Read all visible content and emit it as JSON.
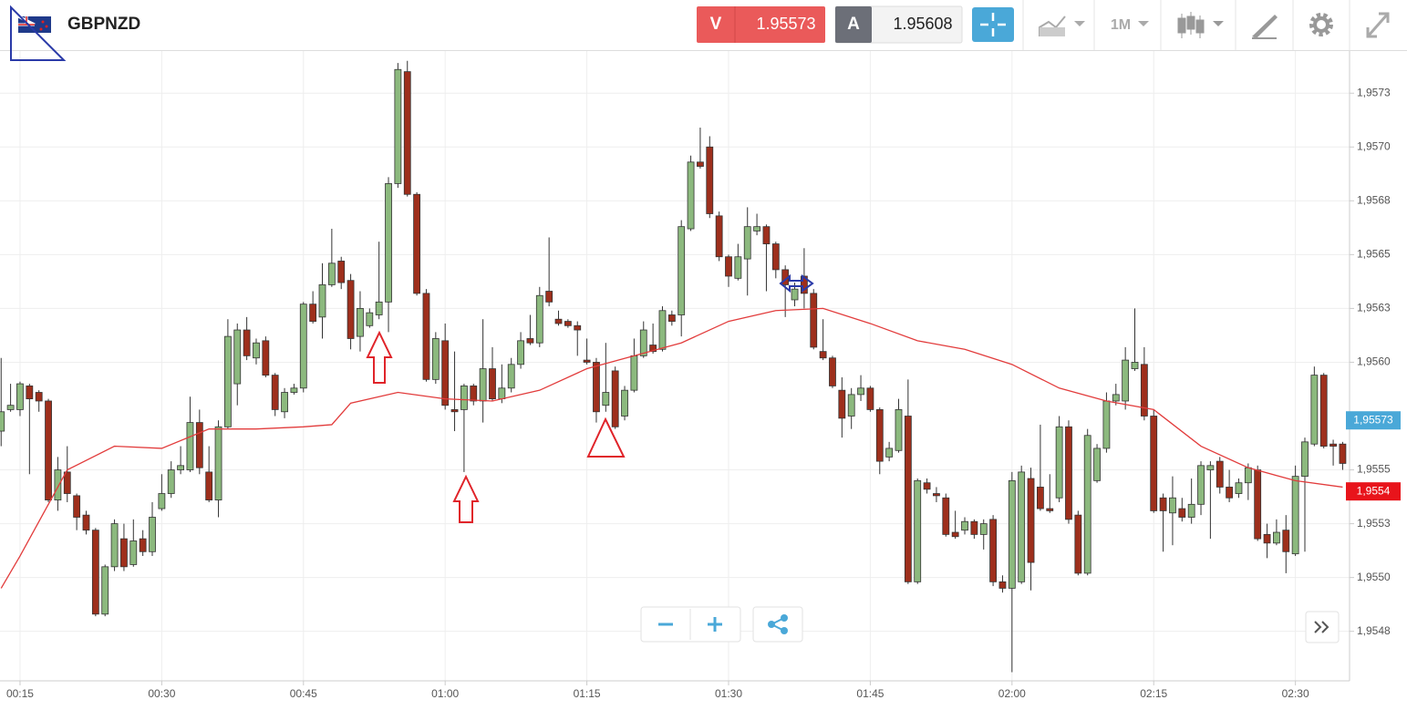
{
  "header": {
    "symbol": "GBPNZD",
    "sell_label": "V",
    "sell_price": "1.95573",
    "buy_label": "A",
    "buy_price": "1.95608",
    "timeframe": "1M"
  },
  "chart_data": {
    "type": "candlestick",
    "up_color": "#8cb97e",
    "down_color": "#9e2f1c",
    "xlim": [
      12.88,
      155.73
    ],
    "ylim": [
      1.95452,
      1.95745
    ],
    "xticks": [
      {
        "value": 15,
        "label": "00:15"
      },
      {
        "value": 30,
        "label": "00:30"
      },
      {
        "value": 45,
        "label": "00:45"
      },
      {
        "value": 60,
        "label": "01:00"
      },
      {
        "value": 75,
        "label": "01:15"
      },
      {
        "value": 90,
        "label": "01:30"
      },
      {
        "value": 105,
        "label": "01:45"
      },
      {
        "value": 120,
        "label": "02:00"
      },
      {
        "value": 135,
        "label": "02:15"
      },
      {
        "value": 150,
        "label": "02:30"
      }
    ],
    "yticks": [
      {
        "value": 1.95725,
        "label": "1,9573"
      },
      {
        "value": 1.957,
        "label": "1,9570"
      },
      {
        "value": 1.95675,
        "label": "1,9568"
      },
      {
        "value": 1.9565,
        "label": "1,9565"
      },
      {
        "value": 1.95625,
        "label": "1,9563"
      },
      {
        "value": 1.956,
        "label": "1,9560"
      },
      {
        "value": 1.9555,
        "label": "1,9555"
      },
      {
        "value": 1.95525,
        "label": "1,9553"
      },
      {
        "value": 1.955,
        "label": "1,9550"
      },
      {
        "value": 1.95475,
        "label": "1,9548"
      }
    ],
    "grid": true,
    "x": [
      13,
      14,
      15,
      16,
      17,
      18,
      19,
      20,
      21,
      22,
      23,
      24,
      25,
      26,
      27,
      28,
      29,
      30,
      31,
      32,
      33,
      34,
      35,
      36,
      37,
      38,
      39,
      40,
      41,
      42,
      43,
      44,
      45,
      46,
      47,
      48,
      49,
      50,
      51,
      52,
      53,
      54,
      55,
      56,
      57,
      58,
      59,
      60,
      61,
      62,
      63,
      64,
      65,
      66,
      67,
      68,
      69,
      70,
      71,
      72,
      73,
      74,
      75,
      76,
      77,
      78,
      79,
      80,
      81,
      82,
      83,
      84,
      85,
      86,
      87,
      88,
      89,
      90,
      91,
      92,
      93,
      94,
      95,
      96,
      97,
      98,
      99,
      100,
      101,
      102,
      103,
      104,
      105,
      106,
      107,
      108,
      109,
      110,
      111,
      112,
      113,
      114,
      115,
      116,
      117,
      118,
      119,
      120,
      121,
      122,
      123,
      124,
      125,
      126,
      127,
      128,
      129,
      130,
      131,
      132,
      133,
      134,
      135,
      136,
      137,
      138,
      139,
      140,
      141,
      142,
      143,
      144,
      145,
      146,
      147,
      148,
      149,
      150,
      151,
      152,
      153,
      154,
      155
    ],
    "open": [
      1.95568,
      1.95578,
      1.95578,
      1.95589,
      1.95586,
      1.95582,
      1.95536,
      1.95549,
      1.95538,
      1.95529,
      1.95522,
      1.95483,
      1.95505,
      1.95518,
      1.95506,
      1.95518,
      1.95512,
      1.95532,
      1.95539,
      1.9555,
      1.9555,
      1.95572,
      1.95549,
      1.95536,
      1.9557,
      1.9559,
      1.95615,
      1.95602,
      1.9561,
      1.95594,
      1.95577,
      1.95586,
      1.95588,
      1.95627,
      1.95621,
      1.95636,
      1.95647,
      1.95638,
      1.95612,
      1.95617,
      1.95622,
      1.95628,
      1.95683,
      1.95735,
      1.95678,
      1.95632,
      1.95592,
      1.9561,
      1.95578,
      1.95578,
      1.95589,
      1.95582,
      1.95597,
      1.95583,
      1.95588,
      1.95599,
      1.95611,
      1.95609,
      1.95633,
      1.9562,
      1.95619,
      1.95617,
      1.95601,
      1.956,
      1.9558,
      1.95596,
      1.95575,
      1.95587,
      1.95603,
      1.95608,
      1.95606,
      1.95622,
      1.95622,
      1.95662,
      1.95693,
      1.957,
      1.95668,
      1.95649,
      1.95639,
      1.95648,
      1.95661,
      1.95663,
      1.95655,
      1.95643,
      1.95629,
      1.9564,
      1.95632,
      1.95605,
      1.95602,
      1.95587,
      1.95575,
      1.95585,
      1.95588,
      1.95578,
      1.95556,
      1.95559,
      1.95575,
      1.95498,
      1.95544,
      1.95539,
      1.95537,
      1.95521,
      1.95522,
      1.95526,
      1.9552,
      1.95527,
      1.95498,
      1.95495,
      1.95498,
      1.95546,
      1.95542,
      1.95532,
      1.95537,
      1.9557,
      1.95529,
      1.95502,
      1.95545,
      1.9556,
      1.95582,
      1.95582,
      1.95597,
      1.95599,
      1.95575,
      1.95537,
      1.9553,
      1.95532,
      1.95528,
      1.95534,
      1.9555,
      1.95554,
      1.95542,
      1.95539,
      1.95544,
      1.9555,
      1.9552,
      1.95516,
      1.95522,
      1.95511,
      1.95547,
      1.95562,
      1.95594,
      1.95562,
      1.95562
    ],
    "high": [
      1.95602,
      1.9559,
      1.95591,
      1.9559,
      1.95587,
      1.95583,
      1.95556,
      1.95561,
      1.95539,
      1.95531,
      1.95523,
      1.95506,
      1.95527,
      1.95525,
      1.95527,
      1.95522,
      1.95535,
      1.95548,
      1.95554,
      1.95561,
      1.95584,
      1.95578,
      1.95561,
      1.95573,
      1.9562,
      1.95618,
      1.95621,
      1.95611,
      1.95612,
      1.95595,
      1.95588,
      1.9559,
      1.95628,
      1.95633,
      1.95646,
      1.95662,
      1.95649,
      1.95641,
      1.95633,
      1.95625,
      1.95656,
      1.95686,
      1.95739,
      1.9574,
      1.95679,
      1.95634,
      1.95614,
      1.95618,
      1.95605,
      1.9559,
      1.9559,
      1.9562,
      1.95607,
      1.95599,
      1.95602,
      1.95614,
      1.95622,
      1.95635,
      1.95658,
      1.95624,
      1.9562,
      1.95619,
      1.95611,
      1.95602,
      1.95609,
      1.95598,
      1.95589,
      1.95611,
      1.95619,
      1.95618,
      1.95626,
      1.95624,
      1.95666,
      1.95696,
      1.95709,
      1.95705,
      1.9567,
      1.9565,
      1.95655,
      1.95672,
      1.95669,
      1.95664,
      1.95656,
      1.95645,
      1.95637,
      1.95653,
      1.95634,
      1.9562,
      1.95603,
      1.95593,
      1.95588,
      1.95594,
      1.95589,
      1.95579,
      1.95563,
      1.95583,
      1.95592,
      1.95546,
      1.95546,
      1.95542,
      1.95539,
      1.95531,
      1.95528,
      1.95527,
      1.95527,
      1.95529,
      1.95501,
      1.95549,
      1.95552,
      1.95551,
      1.95571,
      1.95548,
      1.95575,
      1.95573,
      1.95531,
      1.95569,
      1.95562,
      1.95586,
      1.9559,
      1.95607,
      1.95625,
      1.95607,
      1.95578,
      1.95539,
      1.95547,
      1.95537,
      1.95546,
      1.95554,
      1.95554,
      1.95556,
      1.9555,
      1.95546,
      1.95553,
      1.95552,
      1.95525,
      1.95527,
      1.95529,
      1.95552,
      1.95565,
      1.95598,
      1.95595,
      1.95564,
      1.95563
    ],
    "low": [
      1.95561,
      1.95577,
      1.95575,
      1.95548,
      1.95577,
      1.95535,
      1.95531,
      1.95535,
      1.95522,
      1.9552,
      1.95482,
      1.95482,
      1.95503,
      1.95503,
      1.95505,
      1.9551,
      1.9551,
      1.95531,
      1.95537,
      1.95548,
      1.95549,
      1.95548,
      1.95535,
      1.95528,
      1.95569,
      1.9558,
      1.95601,
      1.95599,
      1.95593,
      1.95575,
      1.95574,
      1.95585,
      1.95586,
      1.95618,
      1.95611,
      1.95635,
      1.95634,
      1.95606,
      1.95605,
      1.95616,
      1.9562,
      1.95614,
      1.95681,
      1.95677,
      1.95631,
      1.95591,
      1.9559,
      1.95578,
      1.95568,
      1.95549,
      1.9558,
      1.95572,
      1.95582,
      1.95581,
      1.95586,
      1.95597,
      1.95608,
      1.95607,
      1.95626,
      1.95617,
      1.95616,
      1.95603,
      1.95599,
      1.95572,
      1.95577,
      1.95569,
      1.95573,
      1.95586,
      1.95602,
      1.95604,
      1.95605,
      1.95617,
      1.95612,
      1.95661,
      1.9569,
      1.95667,
      1.95647,
      1.95635,
      1.95638,
      1.95631,
      1.95659,
      1.95633,
      1.95639,
      1.95621,
      1.95626,
      1.95625,
      1.95606,
      1.95601,
      1.95588,
      1.95565,
      1.95569,
      1.95582,
      1.95577,
      1.95548,
      1.95554,
      1.95558,
      1.95497,
      1.95497,
      1.95539,
      1.95535,
      1.95519,
      1.95518,
      1.9552,
      1.95518,
      1.95513,
      1.95496,
      1.95493,
      1.95456,
      1.95497,
      1.95494,
      1.95531,
      1.9553,
      1.95535,
      1.95525,
      1.95501,
      1.95501,
      1.95544,
      1.95558,
      1.9558,
      1.95578,
      1.95596,
      1.95573,
      1.9553,
      1.95512,
      1.95515,
      1.95526,
      1.95525,
      1.95529,
      1.95518,
      1.95539,
      1.95535,
      1.95537,
      1.95536,
      1.95517,
      1.95509,
      1.95515,
      1.95502,
      1.9551,
      1.95512,
      1.95561,
      1.9556,
      1.95552,
      1.9555
    ],
    "close": [
      1.95577,
      1.9558,
      1.9559,
      1.95583,
      1.95582,
      1.95536,
      1.9555,
      1.95539,
      1.95528,
      1.95522,
      1.95483,
      1.95505,
      1.95525,
      1.95505,
      1.95517,
      1.95512,
      1.95528,
      1.95539,
      1.9555,
      1.95552,
      1.95572,
      1.95551,
      1.95536,
      1.9557,
      1.95612,
      1.95615,
      1.95603,
      1.95609,
      1.95594,
      1.95578,
      1.95586,
      1.95588,
      1.95627,
      1.95619,
      1.95636,
      1.95646,
      1.95637,
      1.95611,
      1.95625,
      1.95623,
      1.95628,
      1.95683,
      1.95736,
      1.95678,
      1.95632,
      1.95592,
      1.95611,
      1.9558,
      1.95577,
      1.95589,
      1.95582,
      1.95597,
      1.95583,
      1.95588,
      1.95599,
      1.9561,
      1.95609,
      1.95631,
      1.95628,
      1.95618,
      1.95617,
      1.95615,
      1.956,
      1.95577,
      1.95586,
      1.9557,
      1.95587,
      1.95603,
      1.95615,
      1.95605,
      1.95624,
      1.95619,
      1.95663,
      1.95693,
      1.95691,
      1.95669,
      1.95649,
      1.9564,
      1.95649,
      1.95663,
      1.95663,
      1.95655,
      1.95643,
      1.95636,
      1.95634,
      1.95632,
      1.95607,
      1.95602,
      1.95589,
      1.95574,
      1.95585,
      1.95588,
      1.95578,
      1.95554,
      1.9556,
      1.95578,
      1.95498,
      1.95545,
      1.95541,
      1.95538,
      1.9552,
      1.95519,
      1.95526,
      1.9552,
      1.95525,
      1.95498,
      1.95495,
      1.95545,
      1.95549,
      1.95507,
      1.95532,
      1.95531,
      1.9557,
      1.95527,
      1.95502,
      1.95566,
      1.9556,
      1.95582,
      1.95585,
      1.95601,
      1.956,
      1.95575,
      1.95531,
      1.95531,
      1.95537,
      1.95528,
      1.95534,
      1.95552,
      1.95552,
      1.95542,
      1.95537,
      1.95544,
      1.95551,
      1.95518,
      1.95516,
      1.95521,
      1.95512,
      1.95547,
      1.95563,
      1.95594,
      1.95561,
      1.95561,
      1.95553
    ],
    "lines": [
      {
        "color": "#e23c3c",
        "x": [
          13,
          15,
          20,
          25,
          30,
          35,
          40,
          45,
          48,
          50,
          55,
          60,
          65,
          70,
          75,
          80,
          85,
          90,
          95,
          100,
          105,
          110,
          115,
          120,
          125,
          130,
          135,
          140,
          145,
          150,
          155
        ],
        "values": [
          1.95495,
          1.9551,
          1.9555,
          1.95561,
          1.9556,
          1.95569,
          1.95569,
          1.9557,
          1.95571,
          1.95581,
          1.95586,
          1.95583,
          1.95582,
          1.95587,
          1.95597,
          1.95603,
          1.95609,
          1.95619,
          1.95624,
          1.95625,
          1.95618,
          1.9561,
          1.95606,
          1.95599,
          1.95588,
          1.95582,
          1.95578,
          1.95561,
          1.95551,
          1.95545,
          1.95542
        ]
      }
    ],
    "price_labels": [
      {
        "value": 1.95573,
        "label": "1,95573",
        "color": "#4aa8d8"
      },
      {
        "value": 1.9554,
        "label": "1,9554",
        "color": "#e8141b"
      }
    ]
  }
}
